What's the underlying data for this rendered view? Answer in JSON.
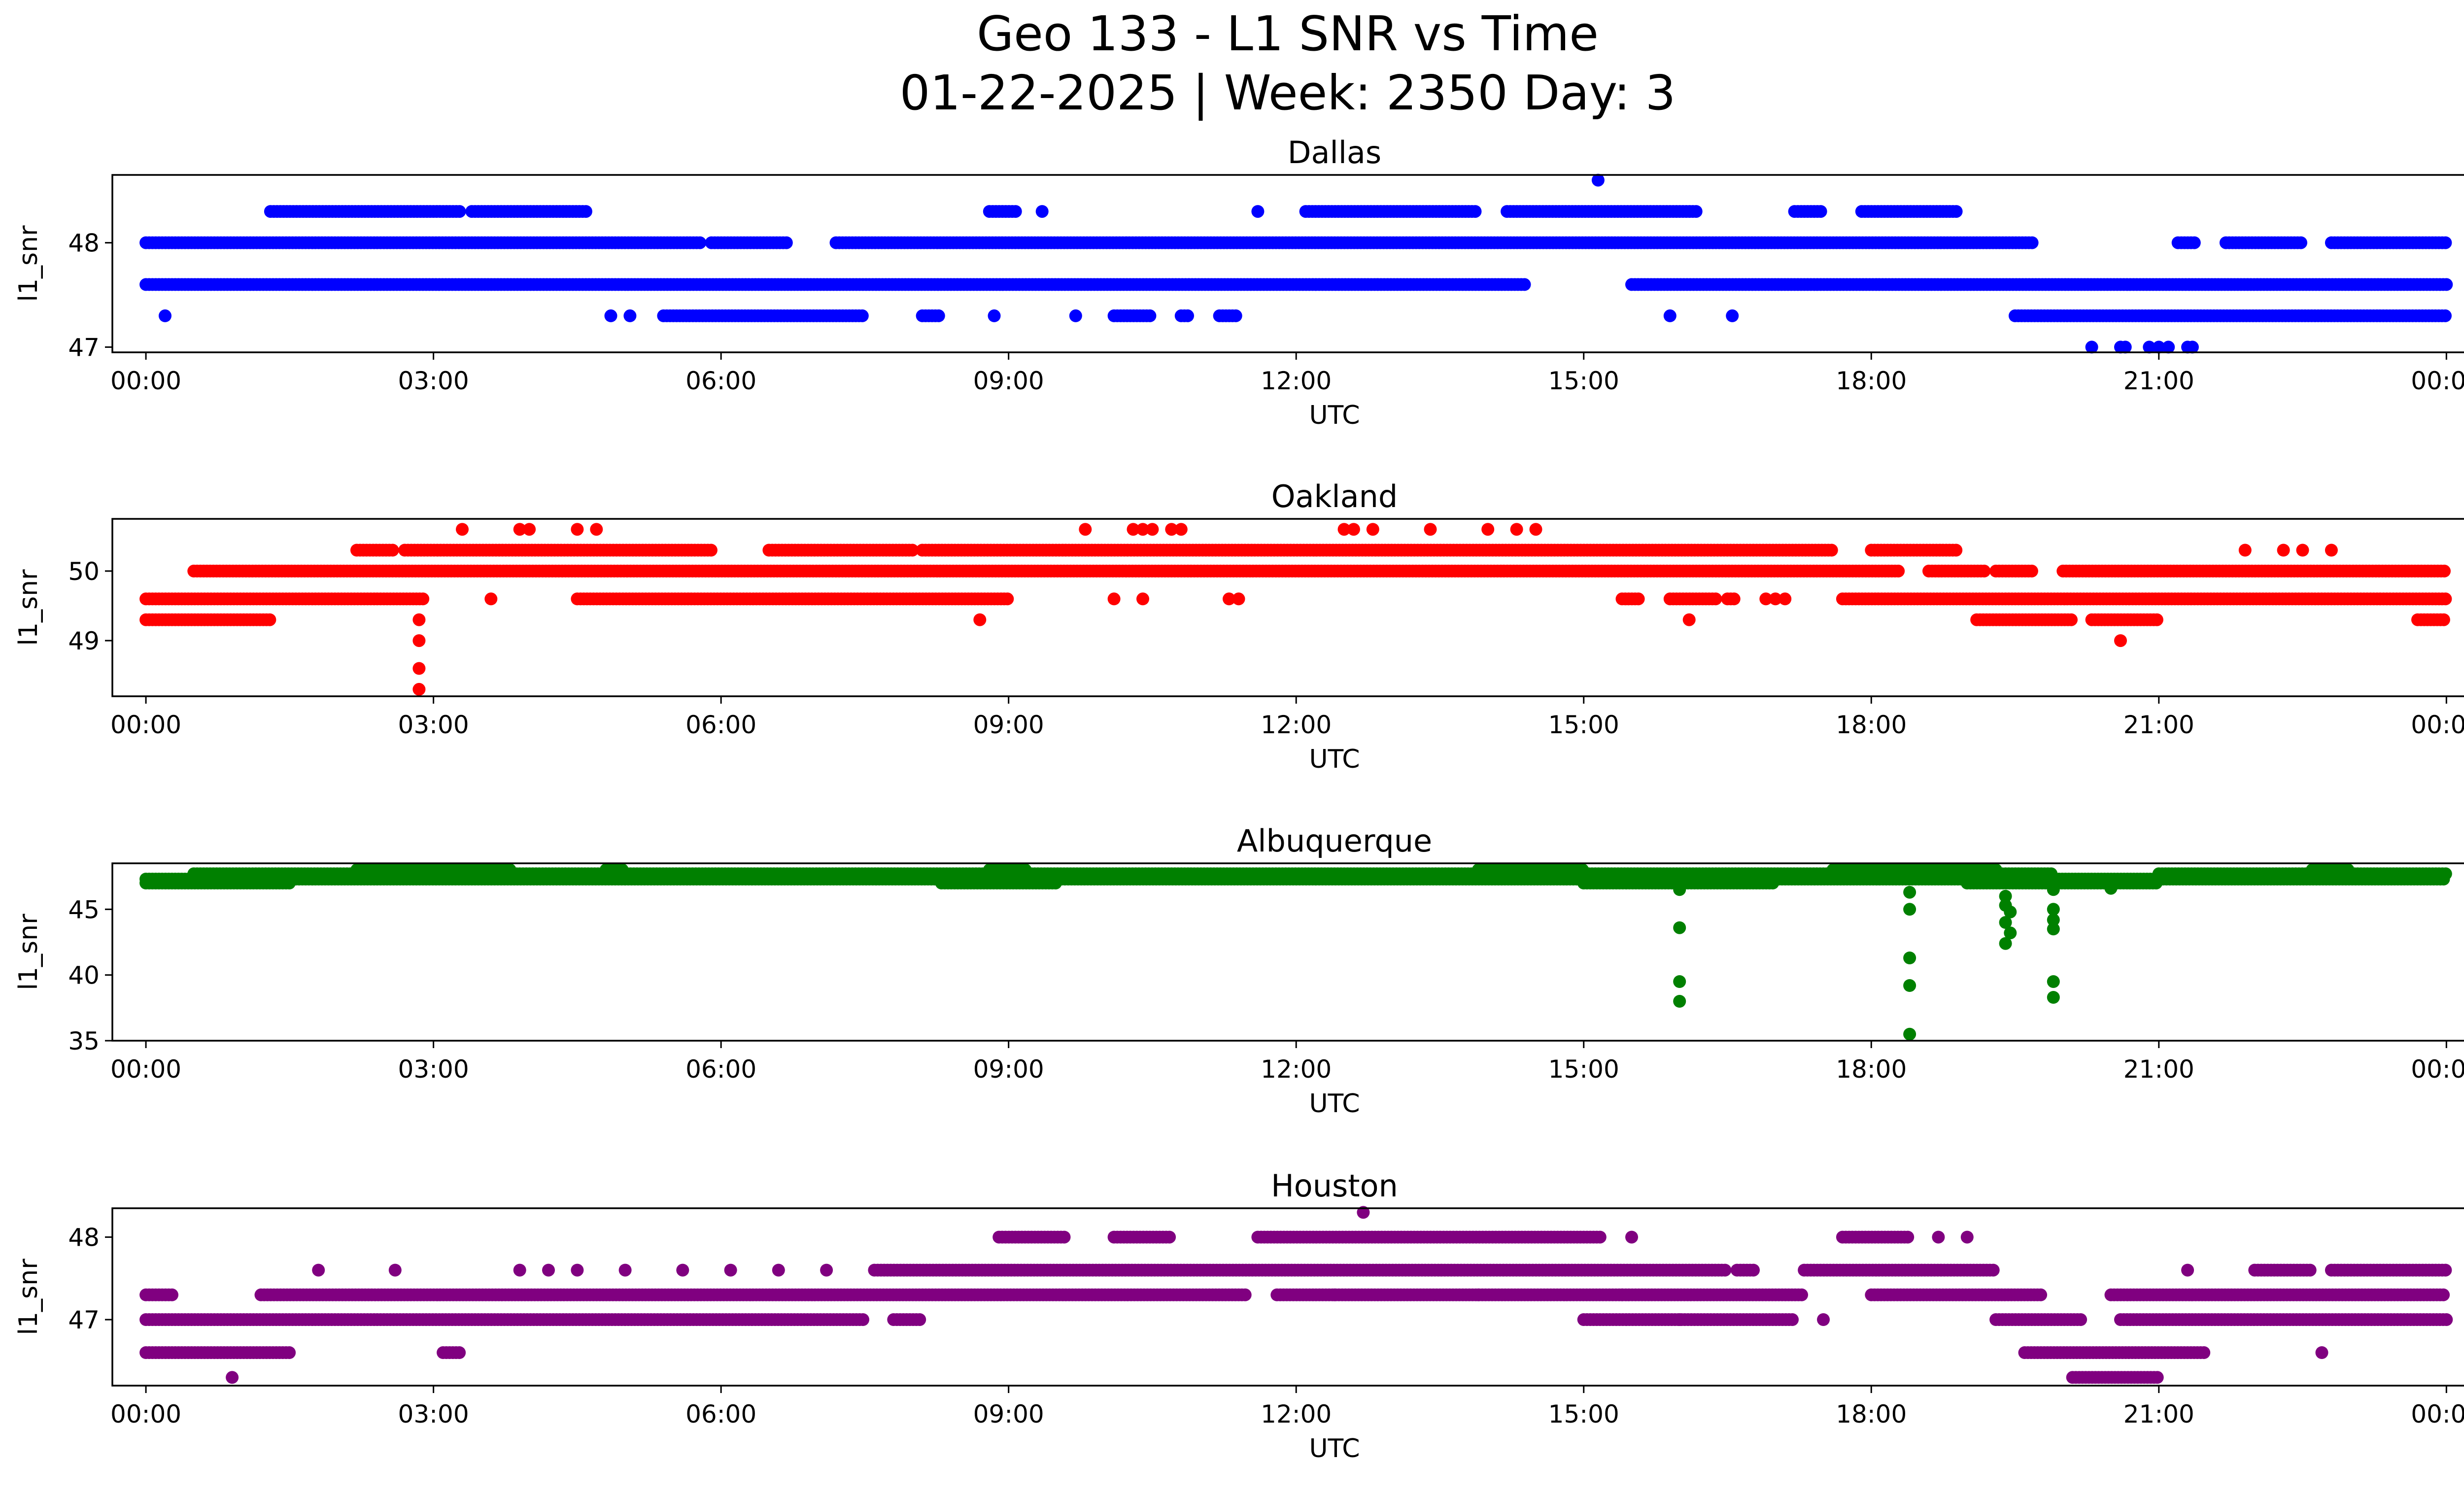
{
  "figure": {
    "title_line1": "Geo 133 - L1 SNR vs Time",
    "title_line2": "01-22-2025 | Week: 2350 Day: 3"
  },
  "chart_data": [
    {
      "type": "scatter",
      "title": "Dallas",
      "xlabel": "UTC",
      "ylabel": "l1_snr",
      "color": "#0000ff",
      "xlim": [
        -0.35,
        25.15
      ],
      "ylim": [
        46.95,
        48.65
      ],
      "yticks": [
        47,
        48
      ],
      "xticks": [
        0,
        3,
        6,
        9,
        12,
        15,
        18,
        21,
        24
      ],
      "xtick_labels": [
        "00:00",
        "03:00",
        "06:00",
        "09:00",
        "12:00",
        "15:00",
        "18:00",
        "21:00",
        "00:00"
      ],
      "bands": [
        {
          "y": 48.0,
          "segments": [
            [
              0.0,
              5.8
            ],
            [
              5.9,
              6.7
            ],
            [
              7.2,
              19.7
            ],
            [
              21.2,
              21.4
            ],
            [
              21.7,
              22.5
            ],
            [
              22.8,
              24.0
            ]
          ]
        },
        {
          "y": 47.6,
          "segments": [
            [
              0.0,
              14.4
            ],
            [
              15.5,
              24.0
            ]
          ]
        },
        {
          "y": 48.3,
          "segments": [
            [
              1.3,
              3.3
            ],
            [
              3.4,
              4.6
            ],
            [
              8.8,
              9.1
            ],
            [
              11.6,
              11.6
            ],
            [
              12.1,
              13.9
            ],
            [
              14.2,
              16.2
            ],
            [
              17.2,
              17.5
            ],
            [
              17.9,
              18.9
            ]
          ]
        },
        {
          "y": 47.3,
          "segments": [
            [
              5.4,
              7.5
            ],
            [
              8.1,
              8.3
            ],
            [
              10.1,
              10.5
            ],
            [
              10.8,
              10.9
            ],
            [
              11.2,
              11.4
            ],
            [
              19.5,
              24.0
            ]
          ]
        }
      ],
      "points": [
        {
          "x": 0.2,
          "y": 47.3
        },
        {
          "x": 4.85,
          "y": 47.3
        },
        {
          "x": 5.05,
          "y": 47.3
        },
        {
          "x": 8.85,
          "y": 47.3
        },
        {
          "x": 9.7,
          "y": 47.3
        },
        {
          "x": 15.9,
          "y": 47.3
        },
        {
          "x": 16.55,
          "y": 47.3
        },
        {
          "x": 9.35,
          "y": 48.3
        },
        {
          "x": 15.15,
          "y": 48.6
        },
        {
          "x": 20.3,
          "y": 47.0
        },
        {
          "x": 20.6,
          "y": 47.0
        },
        {
          "x": 20.65,
          "y": 47.0
        },
        {
          "x": 20.9,
          "y": 47.0
        },
        {
          "x": 21.0,
          "y": 47.0
        },
        {
          "x": 21.1,
          "y": 47.0
        },
        {
          "x": 21.3,
          "y": 47.0
        },
        {
          "x": 21.35,
          "y": 47.0
        }
      ]
    },
    {
      "type": "scatter",
      "title": "Oakland",
      "xlabel": "UTC",
      "ylabel": "l1_snr",
      "color": "#ff0000",
      "xlim": [
        -0.35,
        25.15
      ],
      "ylim": [
        48.2,
        50.75
      ],
      "yticks": [
        49,
        50
      ],
      "xticks": [
        0,
        3,
        6,
        9,
        12,
        15,
        18,
        21,
        24
      ],
      "xtick_labels": [
        "00:00",
        "03:00",
        "06:00",
        "09:00",
        "12:00",
        "15:00",
        "18:00",
        "21:00",
        "00:00"
      ],
      "bands": [
        {
          "y": 50.0,
          "segments": [
            [
              0.5,
              18.3
            ],
            [
              18.6,
              19.2
            ],
            [
              19.3,
              19.7
            ],
            [
              20.0,
              24.0
            ]
          ]
        },
        {
          "y": 49.6,
          "segments": [
            [
              0.0,
              2.9
            ],
            [
              4.5,
              9.0
            ],
            [
              15.4,
              15.6
            ],
            [
              15.9,
              16.4
            ],
            [
              16.5,
              16.6
            ],
            [
              17.7,
              24.0
            ]
          ]
        },
        {
          "y": 50.3,
          "segments": [
            [
              2.2,
              2.6
            ],
            [
              2.7,
              5.9
            ],
            [
              6.5,
              8.0
            ],
            [
              8.1,
              17.6
            ],
            [
              18.0,
              18.9
            ]
          ]
        },
        {
          "y": 49.3,
          "segments": [
            [
              0.0,
              1.3
            ],
            [
              19.1,
              20.1
            ],
            [
              20.3,
              21.0
            ],
            [
              23.7,
              24.0
            ]
          ]
        }
      ],
      "points": [
        {
          "x": 2.85,
          "y": 49.3
        },
        {
          "x": 2.85,
          "y": 49.0
        },
        {
          "x": 2.85,
          "y": 48.6
        },
        {
          "x": 2.85,
          "y": 48.3
        },
        {
          "x": 3.3,
          "y": 50.6
        },
        {
          "x": 3.9,
          "y": 50.6
        },
        {
          "x": 4.0,
          "y": 50.6
        },
        {
          "x": 4.5,
          "y": 50.6
        },
        {
          "x": 4.7,
          "y": 50.6
        },
        {
          "x": 9.8,
          "y": 50.6
        },
        {
          "x": 10.3,
          "y": 50.6
        },
        {
          "x": 10.4,
          "y": 50.6
        },
        {
          "x": 10.5,
          "y": 50.6
        },
        {
          "x": 10.7,
          "y": 50.6
        },
        {
          "x": 10.8,
          "y": 50.6
        },
        {
          "x": 12.5,
          "y": 50.6
        },
        {
          "x": 12.6,
          "y": 50.6
        },
        {
          "x": 12.8,
          "y": 50.6
        },
        {
          "x": 13.4,
          "y": 50.6
        },
        {
          "x": 14.0,
          "y": 50.6
        },
        {
          "x": 14.3,
          "y": 50.6
        },
        {
          "x": 14.5,
          "y": 50.6
        },
        {
          "x": 3.6,
          "y": 49.6
        },
        {
          "x": 10.1,
          "y": 49.6
        },
        {
          "x": 10.4,
          "y": 49.6
        },
        {
          "x": 11.3,
          "y": 49.6
        },
        {
          "x": 11.4,
          "y": 49.6
        },
        {
          "x": 16.9,
          "y": 49.6
        },
        {
          "x": 17.0,
          "y": 49.6
        },
        {
          "x": 17.1,
          "y": 49.6
        },
        {
          "x": 8.7,
          "y": 49.3
        },
        {
          "x": 16.1,
          "y": 49.3
        },
        {
          "x": 20.6,
          "y": 49.0
        },
        {
          "x": 21.9,
          "y": 50.3
        },
        {
          "x": 22.3,
          "y": 50.3
        },
        {
          "x": 22.5,
          "y": 50.3
        },
        {
          "x": 22.8,
          "y": 50.3
        }
      ]
    },
    {
      "type": "scatter",
      "title": "Albuquerque",
      "xlabel": "UTC",
      "ylabel": "l1_snr",
      "color": "#008000",
      "xlim": [
        -0.35,
        25.15
      ],
      "ylim": [
        35,
        48.5
      ],
      "yticks": [
        35,
        40,
        45
      ],
      "xticks": [
        0,
        3,
        6,
        9,
        12,
        15,
        18,
        21,
        24
      ],
      "xtick_labels": [
        "00:00",
        "03:00",
        "06:00",
        "09:00",
        "12:00",
        "15:00",
        "18:00",
        "21:00",
        "00:00"
      ],
      "bands": [
        {
          "y": 47.3,
          "segments": [
            [
              0.0,
              24.0
            ]
          ]
        },
        {
          "y": 47.7,
          "segments": [
            [
              0.5,
              17.6
            ],
            [
              17.7,
              19.9
            ],
            [
              21.0,
              24.0
            ]
          ]
        },
        {
          "y": 47.0,
          "segments": [
            [
              0.0,
              1.5
            ],
            [
              8.3,
              9.5
            ],
            [
              15.0,
              17.0
            ],
            [
              19.0,
              21.0
            ]
          ]
        },
        {
          "y": 48.0,
          "segments": [
            [
              2.2,
              3.8
            ],
            [
              4.8,
              5.0
            ],
            [
              8.8,
              9.2
            ],
            [
              13.9,
              15.0
            ],
            [
              17.6,
              19.3
            ],
            [
              22.6,
              23.0
            ]
          ]
        }
      ],
      "points": [
        {
          "x": 16.0,
          "y": 46.5
        },
        {
          "x": 16.0,
          "y": 43.6
        },
        {
          "x": 16.0,
          "y": 39.5
        },
        {
          "x": 16.0,
          "y": 38.0
        },
        {
          "x": 18.4,
          "y": 46.3
        },
        {
          "x": 18.4,
          "y": 45.0
        },
        {
          "x": 18.4,
          "y": 41.3
        },
        {
          "x": 18.4,
          "y": 39.2
        },
        {
          "x": 18.4,
          "y": 35.5
        },
        {
          "x": 19.4,
          "y": 46.0
        },
        {
          "x": 19.4,
          "y": 45.3
        },
        {
          "x": 19.45,
          "y": 44.8
        },
        {
          "x": 19.4,
          "y": 44.0
        },
        {
          "x": 19.45,
          "y": 43.2
        },
        {
          "x": 19.4,
          "y": 42.4
        },
        {
          "x": 19.9,
          "y": 46.5
        },
        {
          "x": 19.9,
          "y": 45.0
        },
        {
          "x": 19.9,
          "y": 44.2
        },
        {
          "x": 19.9,
          "y": 43.5
        },
        {
          "x": 19.9,
          "y": 39.5
        },
        {
          "x": 19.9,
          "y": 38.3
        },
        {
          "x": 20.5,
          "y": 46.6
        }
      ]
    },
    {
      "type": "scatter",
      "title": "Houston",
      "xlabel": "UTC",
      "ylabel": "l1_snr",
      "color": "#800080",
      "xlim": [
        -0.35,
        25.15
      ],
      "ylim": [
        46.2,
        48.35
      ],
      "yticks": [
        47,
        48
      ],
      "xticks": [
        0,
        3,
        6,
        9,
        12,
        15,
        18,
        21,
        24
      ],
      "xtick_labels": [
        "00:00",
        "03:00",
        "06:00",
        "09:00",
        "12:00",
        "15:00",
        "18:00",
        "21:00",
        "00:00"
      ],
      "bands": [
        {
          "y": 47.3,
          "segments": [
            [
              0.0,
              0.3
            ],
            [
              1.2,
              11.5
            ],
            [
              11.8,
              17.3
            ],
            [
              18.0,
              19.8
            ],
            [
              20.5,
              24.0
            ]
          ]
        },
        {
          "y": 47.0,
          "segments": [
            [
              0.0,
              7.5
            ],
            [
              7.8,
              8.1
            ],
            [
              15.0,
              17.2
            ],
            [
              19.3,
              20.2
            ],
            [
              20.6,
              24.0
            ]
          ]
        },
        {
          "y": 46.6,
          "segments": [
            [
              0.0,
              1.5
            ],
            [
              3.1,
              3.3
            ],
            [
              19.6,
              21.5
            ]
          ]
        },
        {
          "y": 47.6,
          "segments": [
            [
              7.6,
              16.5
            ],
            [
              16.6,
              16.8
            ],
            [
              17.3,
              19.3
            ],
            [
              22.0,
              22.6
            ],
            [
              22.8,
              24.0
            ]
          ]
        },
        {
          "y": 48.0,
          "segments": [
            [
              8.9,
              9.6
            ],
            [
              10.1,
              10.7
            ],
            [
              11.6,
              15.2
            ],
            [
              17.7,
              18.4
            ]
          ]
        },
        {
          "y": 46.3,
          "segments": [
            [
              20.1,
              21.0
            ]
          ]
        }
      ],
      "points": [
        {
          "x": 0.9,
          "y": 46.3
        },
        {
          "x": 1.8,
          "y": 47.6
        },
        {
          "x": 2.6,
          "y": 47.6
        },
        {
          "x": 3.9,
          "y": 47.6
        },
        {
          "x": 4.2,
          "y": 47.6
        },
        {
          "x": 4.5,
          "y": 47.6
        },
        {
          "x": 5.0,
          "y": 47.6
        },
        {
          "x": 5.6,
          "y": 47.6
        },
        {
          "x": 6.1,
          "y": 47.6
        },
        {
          "x": 6.6,
          "y": 47.6
        },
        {
          "x": 7.1,
          "y": 47.6
        },
        {
          "x": 12.7,
          "y": 48.3
        },
        {
          "x": 15.5,
          "y": 48.0
        },
        {
          "x": 18.7,
          "y": 48.0
        },
        {
          "x": 19.0,
          "y": 48.0
        },
        {
          "x": 21.3,
          "y": 47.6
        },
        {
          "x": 22.7,
          "y": 46.6
        },
        {
          "x": 12.4,
          "y": 47.3
        },
        {
          "x": 13.9,
          "y": 47.3
        },
        {
          "x": 15.4,
          "y": 47.3
        },
        {
          "x": 16.0,
          "y": 47.0
        },
        {
          "x": 17.5,
          "y": 47.0
        }
      ]
    }
  ]
}
